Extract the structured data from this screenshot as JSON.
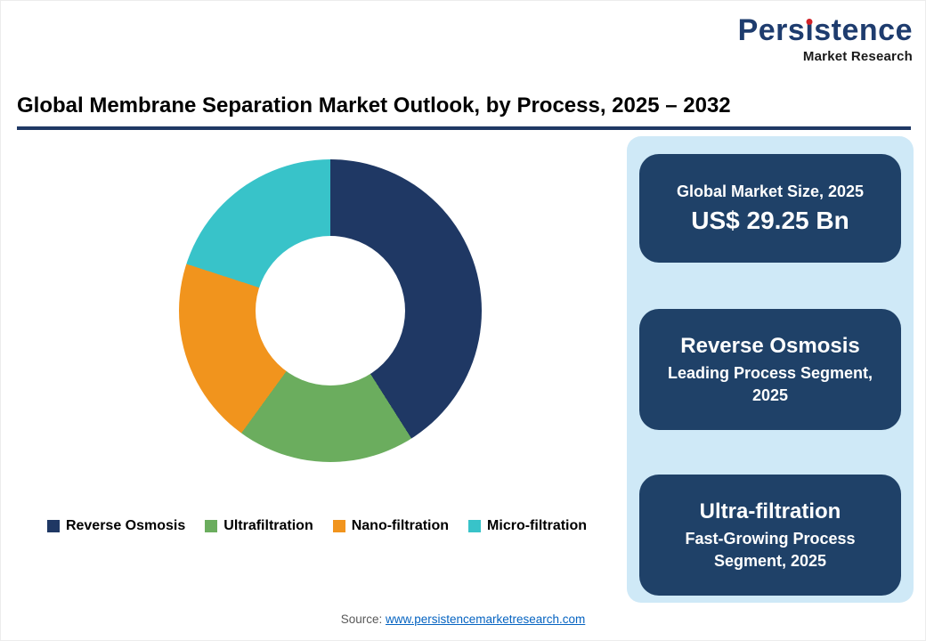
{
  "logo": {
    "brand": "Persistence",
    "sub": "Market Research"
  },
  "header": {
    "title": "Global Membrane Separation Market Outlook, by Process, 2025 – 2032"
  },
  "chart_data": {
    "type": "pie",
    "subtype": "donut",
    "title": "Global Membrane Separation Market Outlook, by Process, 2025 – 2032",
    "categories": [
      "Reverse Osmosis",
      "Ultrafiltration",
      "Nano-filtration",
      "Micro-filtration"
    ],
    "values": [
      41,
      19,
      20,
      20
    ],
    "unit": "percent (estimated from arc angles)",
    "colors": [
      "#1F3864",
      "#6BAD5E",
      "#F1941D",
      "#38C3C9"
    ],
    "start_angle_deg": 0,
    "direction": "clockwise",
    "inner_radius_ratio": 0.49,
    "legend_position": "bottom"
  },
  "info_cards": [
    {
      "top": "Global Market Size, 2025",
      "bottom": "US$ 29.25 Bn"
    },
    {
      "top": "Reverse Osmosis",
      "bottom": "Leading Process Segment, 2025"
    },
    {
      "top": "Ultra-filtration",
      "bottom": "Fast-Growing Process Segment, 2025"
    }
  ],
  "source": {
    "prefix": "Source: ",
    "link_text": "www.persistencemarketresearch.com"
  },
  "colors": {
    "navy": "#1F3864",
    "card_navy": "#1F4168",
    "panel_light_blue": "#CFE9F7",
    "accent_red": "#D02128",
    "link_blue": "#0563C1",
    "title_underline": "#1F3864"
  }
}
